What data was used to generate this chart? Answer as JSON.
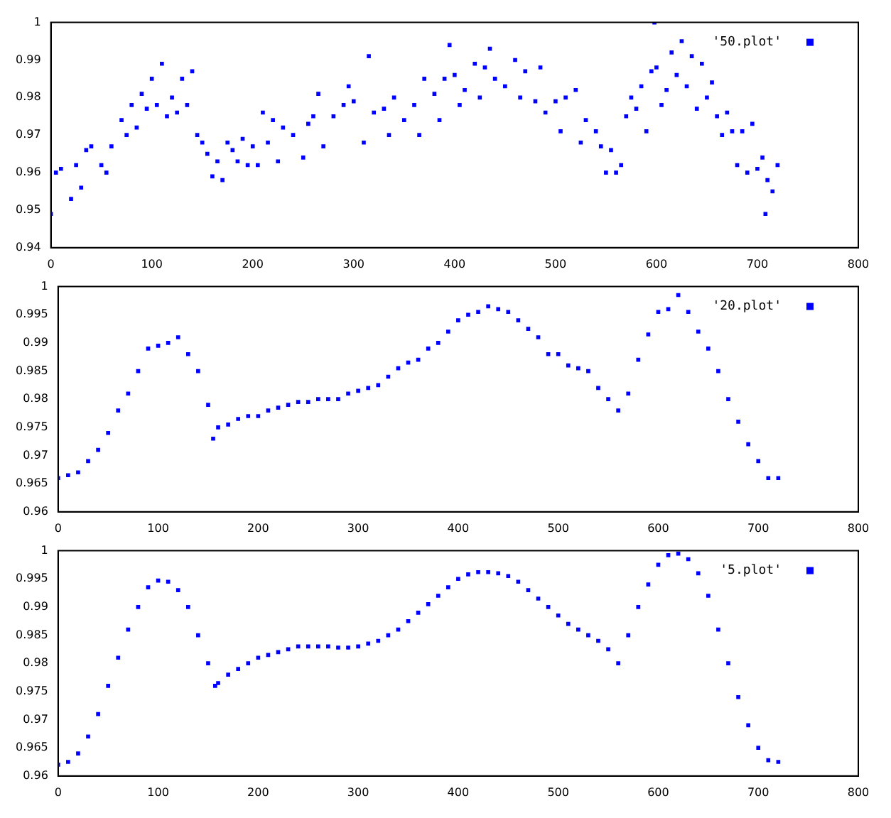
{
  "chart_data": [
    {
      "type": "scatter",
      "legend": "top right",
      "marker": "square",
      "xlim": [
        0,
        800
      ],
      "xticks": [
        0,
        100,
        200,
        300,
        400,
        500,
        600,
        700,
        800
      ],
      "ylim": [
        0.94,
        1
      ],
      "yticks": [
        0.94,
        0.95,
        0.96,
        0.97,
        0.98,
        0.99,
        1
      ],
      "series": [
        {
          "name": "'50.plot'",
          "color": "#0000ff",
          "x": [
            0,
            5,
            10,
            20,
            25,
            30,
            35,
            40,
            50,
            55,
            60,
            70,
            75,
            80,
            85,
            90,
            95,
            100,
            105,
            110,
            115,
            120,
            125,
            130,
            135,
            140,
            145,
            150,
            155,
            160,
            165,
            170,
            175,
            180,
            185,
            190,
            195,
            200,
            205,
            210,
            215,
            220,
            225,
            230,
            240,
            250,
            255,
            260,
            265,
            270,
            280,
            290,
            295,
            300,
            310,
            315,
            320,
            330,
            335,
            340,
            350,
            360,
            365,
            370,
            380,
            385,
            390,
            395,
            400,
            405,
            410,
            420,
            425,
            430,
            435,
            440,
            450,
            460,
            465,
            470,
            480,
            485,
            490,
            500,
            505,
            510,
            520,
            525,
            530,
            540,
            545,
            550,
            555,
            560,
            565,
            570,
            575,
            580,
            585,
            590,
            595,
            598,
            600,
            605,
            610,
            615,
            620,
            625,
            630,
            635,
            640,
            645,
            650,
            655,
            660,
            665,
            670,
            675,
            680,
            685,
            690,
            695,
            700,
            705,
            708,
            710,
            715,
            720
          ],
          "values": [
            0.949,
            0.96,
            0.961,
            0.953,
            0.962,
            0.956,
            0.966,
            0.967,
            0.962,
            0.96,
            0.967,
            0.974,
            0.97,
            0.978,
            0.972,
            0.981,
            0.977,
            0.985,
            0.978,
            0.989,
            0.975,
            0.98,
            0.976,
            0.985,
            0.978,
            0.987,
            0.97,
            0.968,
            0.965,
            0.959,
            0.963,
            0.958,
            0.968,
            0.966,
            0.963,
            0.969,
            0.962,
            0.967,
            0.962,
            0.976,
            0.968,
            0.974,
            0.963,
            0.972,
            0.97,
            0.964,
            0.973,
            0.975,
            0.981,
            0.967,
            0.975,
            0.978,
            0.983,
            0.979,
            0.968,
            0.991,
            0.976,
            0.977,
            0.97,
            0.98,
            0.974,
            0.978,
            0.97,
            0.985,
            0.981,
            0.974,
            0.985,
            0.994,
            0.986,
            0.978,
            0.982,
            0.989,
            0.98,
            0.988,
            0.993,
            0.985,
            0.983,
            0.99,
            0.98,
            0.987,
            0.979,
            0.988,
            0.976,
            0.979,
            0.971,
            0.98,
            0.982,
            0.968,
            0.974,
            0.971,
            0.967,
            0.96,
            0.966,
            0.96,
            0.962,
            0.975,
            0.98,
            0.977,
            0.983,
            0.971,
            0.987,
            1,
            0.988,
            0.978,
            0.982,
            0.992,
            0.986,
            0.995,
            0.983,
            0.991,
            0.977,
            0.989,
            0.98,
            0.984,
            0.975,
            0.97,
            0.976,
            0.971,
            0.962,
            0.971,
            0.96,
            0.973,
            0.961,
            0.964,
            0.949,
            0.958,
            0.955,
            0.962
          ]
        }
      ]
    },
    {
      "type": "scatter",
      "legend": "top right",
      "marker": "square",
      "xlim": [
        0,
        800
      ],
      "xticks": [
        0,
        100,
        200,
        300,
        400,
        500,
        600,
        700,
        800
      ],
      "ylim": [
        0.96,
        1
      ],
      "yticks": [
        0.96,
        0.965,
        0.97,
        0.975,
        0.98,
        0.985,
        0.99,
        0.995,
        1
      ],
      "series": [
        {
          "name": "'20.plot'",
          "color": "#0000ff",
          "x": [
            0,
            10,
            20,
            30,
            40,
            50,
            60,
            70,
            80,
            90,
            100,
            110,
            120,
            130,
            140,
            150,
            155,
            160,
            170,
            180,
            190,
            200,
            210,
            220,
            230,
            240,
            250,
            260,
            270,
            280,
            290,
            300,
            310,
            320,
            330,
            340,
            350,
            360,
            370,
            380,
            390,
            400,
            410,
            420,
            430,
            440,
            450,
            460,
            470,
            480,
            490,
            500,
            510,
            520,
            530,
            540,
            550,
            560,
            570,
            580,
            590,
            600,
            610,
            620,
            630,
            640,
            650,
            660,
            670,
            680,
            690,
            700,
            710,
            720
          ],
          "values": [
            0.966,
            0.9665,
            0.967,
            0.969,
            0.971,
            0.974,
            0.978,
            0.981,
            0.985,
            0.989,
            0.9895,
            0.99,
            0.991,
            0.988,
            0.985,
            0.979,
            0.973,
            0.975,
            0.9755,
            0.9765,
            0.977,
            0.977,
            0.978,
            0.9785,
            0.979,
            0.9795,
            0.9795,
            0.98,
            0.98,
            0.98,
            0.981,
            0.9815,
            0.982,
            0.9825,
            0.984,
            0.9855,
            0.9865,
            0.987,
            0.989,
            0.99,
            0.992,
            0.994,
            0.995,
            0.9955,
            0.9965,
            0.996,
            0.9955,
            0.994,
            0.9925,
            0.991,
            0.988,
            0.988,
            0.986,
            0.9855,
            0.985,
            0.982,
            0.98,
            0.978,
            0.981,
            0.987,
            0.9915,
            0.9955,
            0.996,
            0.9985,
            0.9955,
            0.992,
            0.989,
            0.985,
            0.98,
            0.976,
            0.972,
            0.969,
            0.966,
            0.966
          ]
        }
      ]
    },
    {
      "type": "scatter",
      "legend": "top right",
      "marker": "square",
      "xlim": [
        0,
        800
      ],
      "xticks": [
        0,
        100,
        200,
        300,
        400,
        500,
        600,
        700,
        800
      ],
      "ylim": [
        0.96,
        1
      ],
      "yticks": [
        0.96,
        0.965,
        0.97,
        0.975,
        0.98,
        0.985,
        0.99,
        0.995,
        1
      ],
      "series": [
        {
          "name": "'5.plot'",
          "color": "#0000ff",
          "x": [
            0,
            10,
            20,
            30,
            40,
            50,
            60,
            70,
            80,
            90,
            100,
            110,
            120,
            130,
            140,
            150,
            157,
            160,
            170,
            180,
            190,
            200,
            210,
            220,
            230,
            240,
            250,
            260,
            270,
            280,
            290,
            300,
            310,
            320,
            330,
            340,
            350,
            360,
            370,
            380,
            390,
            400,
            410,
            420,
            430,
            440,
            450,
            460,
            470,
            480,
            490,
            500,
            510,
            520,
            530,
            540,
            550,
            560,
            570,
            580,
            590,
            600,
            610,
            620,
            630,
            640,
            650,
            660,
            670,
            680,
            690,
            700,
            710,
            720
          ],
          "values": [
            0.962,
            0.9625,
            0.964,
            0.967,
            0.971,
            0.976,
            0.981,
            0.986,
            0.99,
            0.9935,
            0.9947,
            0.9945,
            0.993,
            0.99,
            0.985,
            0.98,
            0.976,
            0.9765,
            0.978,
            0.979,
            0.98,
            0.981,
            0.9815,
            0.982,
            0.9825,
            0.983,
            0.983,
            0.983,
            0.983,
            0.9828,
            0.9828,
            0.983,
            0.9835,
            0.984,
            0.985,
            0.986,
            0.9875,
            0.989,
            0.9905,
            0.992,
            0.9935,
            0.995,
            0.9958,
            0.9962,
            0.9962,
            0.996,
            0.9955,
            0.9945,
            0.993,
            0.9915,
            0.99,
            0.9885,
            0.987,
            0.986,
            0.985,
            0.984,
            0.9825,
            0.98,
            0.985,
            0.99,
            0.994,
            0.9975,
            0.9992,
            0.9995,
            0.9985,
            0.996,
            0.992,
            0.986,
            0.98,
            0.974,
            0.969,
            0.965,
            0.9628,
            0.9625
          ]
        }
      ]
    }
  ]
}
